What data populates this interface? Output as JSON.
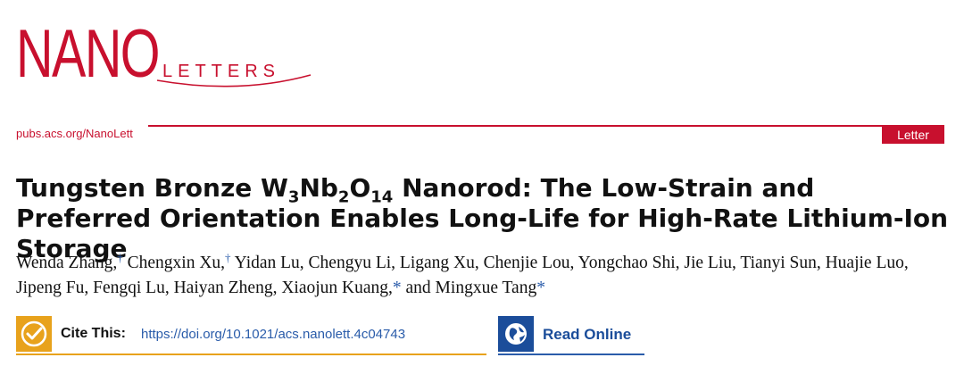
{
  "journal": {
    "logo_main": "NANO",
    "logo_sub": "LETTERS",
    "brand_color": "#c8102e"
  },
  "header": {
    "url": "pubs.acs.org/NanoLett",
    "article_type": "Letter"
  },
  "article": {
    "title_part1": "Tungsten Bronze W",
    "title_sub1": "3",
    "title_part2": "Nb",
    "title_sub2": "2",
    "title_part3": "O",
    "title_sub3": "14",
    "title_part4": " Nanorod: The Low-Strain and Preferred Orientation Enables Long-Life for High-Rate Lithium-Ion Storage",
    "authors": [
      {
        "name": "Wenda Zhang,",
        "mark": "†"
      },
      {
        "name": " Chengxin Xu,",
        "mark": "†"
      },
      {
        "name": " Yidan Lu, Chengyu Li, Ligang Xu, Chenjie Lou, Yongchao Shi, Jie Liu, Tianyi Sun, Huajie Luo, Jipeng Fu, Fengqi Lu, Haiyan Zheng, Xiaojun Kuang,",
        "mark": "*"
      },
      {
        "name": " and Mingxue Tang",
        "mark": "*"
      }
    ]
  },
  "actions": {
    "cite_label": "Cite This:",
    "cite_doi": "https://doi.org/10.1021/acs.nanolett.4c04743",
    "cite_icon": "quote-check-icon",
    "cite_color": "#e8a21c",
    "read_label": "Read Online",
    "read_icon": "globe-icon",
    "read_color": "#1b4d9a"
  }
}
